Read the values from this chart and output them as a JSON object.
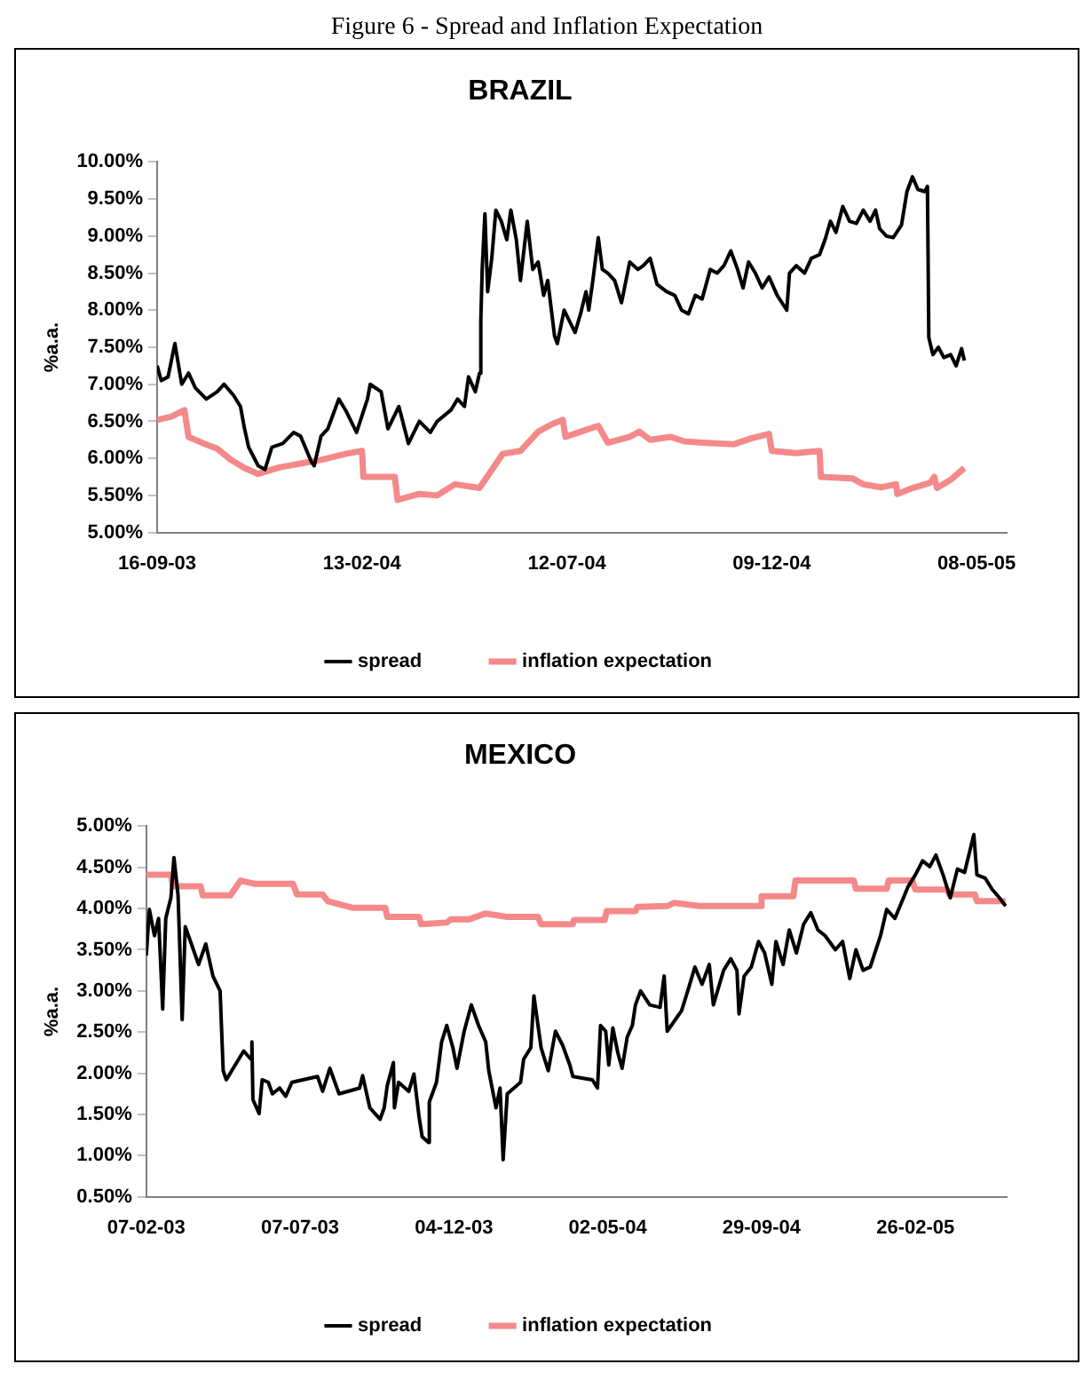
{
  "chart_data": [
    {
      "type": "line",
      "title": "BRAZIL",
      "ylabel": "%a.a.",
      "annotations": [
        "Figure 6 - Spread and Inflation Expectation"
      ],
      "legend": "bottom",
      "grid": false,
      "marker": "none",
      "line_style": "solid",
      "xlim": [
        "2003-09-16",
        "2005-05-30"
      ],
      "xticks": [
        {
          "value": "2003-09-16",
          "label": "16-09-03"
        },
        {
          "value": "2004-02-13",
          "label": "13-02-04"
        },
        {
          "value": "2004-07-12",
          "label": "12-07-04"
        },
        {
          "value": "2004-12-09",
          "label": "09-12-04"
        },
        {
          "value": "2005-05-08",
          "label": "08-05-05"
        }
      ],
      "ylim": [
        5,
        10
      ],
      "yticks": [
        {
          "value": 5,
          "label": "5.00%"
        },
        {
          "value": 5.5,
          "label": "5.50%"
        },
        {
          "value": 6,
          "label": "6.00%"
        },
        {
          "value": 6.5,
          "label": "6.50%"
        },
        {
          "value": 7,
          "label": "7.00%"
        },
        {
          "value": 7.5,
          "label": "7.50%"
        },
        {
          "value": 8,
          "label": "8.00%"
        },
        {
          "value": 8.5,
          "label": "8.50%"
        },
        {
          "value": 9,
          "label": "9.00%"
        },
        {
          "value": 9.5,
          "label": "9.50%"
        },
        {
          "value": 10,
          "label": "10.00%"
        }
      ],
      "series": [
        {
          "name": "spread",
          "color": "#000000",
          "x": [
            "2003-09-16",
            "2003-09-19",
            "2003-09-24",
            "2003-09-29",
            "2003-10-04",
            "2003-10-09",
            "2003-10-14",
            "2003-10-22",
            "2003-10-30",
            "2003-11-04",
            "2003-11-11",
            "2003-11-16",
            "2003-11-19",
            "2003-11-22",
            "2003-11-29",
            "2003-12-04",
            "2003-12-09",
            "2003-12-17",
            "2003-12-25",
            "2003-12-30",
            "2004-01-07",
            "2004-01-09",
            "2004-01-14",
            "2004-01-19",
            "2004-01-27",
            "2004-02-01",
            "2004-02-09",
            "2004-02-17",
            "2004-02-19",
            "2004-02-27",
            "2004-03-03",
            "2004-03-11",
            "2004-03-18",
            "2004-03-26",
            "2004-04-03",
            "2004-04-08",
            "2004-04-18",
            "2004-04-23",
            "2004-04-28",
            "2004-05-01",
            "2004-05-06",
            "2004-05-09",
            "2004-05-10",
            "2004-05-11",
            "2004-05-13",
            "2004-05-15",
            "2004-05-18",
            "2004-05-21",
            "2004-05-25",
            "2004-05-29",
            "2004-06-01",
            "2004-06-05",
            "2004-06-08",
            "2004-06-13",
            "2004-06-17",
            "2004-06-21",
            "2004-06-25",
            "2004-06-28",
            "2004-07-03",
            "2004-07-05",
            "2004-07-10",
            "2004-07-14",
            "2004-07-18",
            "2004-07-22",
            "2004-07-26",
            "2004-07-28",
            "2004-07-31",
            "2004-08-04",
            "2004-08-07",
            "2004-08-11",
            "2004-08-16",
            "2004-08-21",
            "2004-08-27",
            "2004-09-02",
            "2004-09-06",
            "2004-09-11",
            "2004-09-16",
            "2004-09-23",
            "2004-09-29",
            "2004-10-04",
            "2004-10-09",
            "2004-10-14",
            "2004-10-19",
            "2004-10-25",
            "2004-10-30",
            "2004-11-04",
            "2004-11-09",
            "2004-11-14",
            "2004-11-18",
            "2004-11-22",
            "2004-11-27",
            "2004-12-02",
            "2004-12-07",
            "2004-12-13",
            "2004-12-20",
            "2004-12-22",
            "2004-12-27",
            "2005-01-02",
            "2005-01-07",
            "2005-01-13",
            "2005-01-17",
            "2005-01-21",
            "2005-01-25",
            "2005-01-30",
            "2005-02-04",
            "2005-02-09",
            "2005-02-14",
            "2005-02-19",
            "2005-02-23",
            "2005-02-26",
            "2005-03-03",
            "2005-03-08",
            "2005-03-14",
            "2005-03-18",
            "2005-03-22",
            "2005-03-26",
            "2005-03-31",
            "2005-04-02",
            "2005-04-03",
            "2005-04-06",
            "2005-04-10",
            "2005-04-14",
            "2005-04-19",
            "2005-04-23",
            "2005-04-27",
            "2005-04-29"
          ],
          "values": [
            7.25,
            7.05,
            7.1,
            7.55,
            7.0,
            7.15,
            6.95,
            6.8,
            6.9,
            7.0,
            6.85,
            6.7,
            6.4,
            6.15,
            5.9,
            5.85,
            6.15,
            6.2,
            6.35,
            6.3,
            5.95,
            5.9,
            6.3,
            6.4,
            6.8,
            6.65,
            6.35,
            6.8,
            7.0,
            6.9,
            6.4,
            6.7,
            6.2,
            6.5,
            6.35,
            6.5,
            6.65,
            6.8,
            6.7,
            7.1,
            6.9,
            7.15,
            7.87,
            8.55,
            9.3,
            8.25,
            8.7,
            9.35,
            9.2,
            8.95,
            9.35,
            8.95,
            8.4,
            9.2,
            8.55,
            8.65,
            8.2,
            8.4,
            7.65,
            7.55,
            8.0,
            7.85,
            7.7,
            7.95,
            8.25,
            8.0,
            8.4,
            8.98,
            8.55,
            8.5,
            8.4,
            8.1,
            8.65,
            8.55,
            8.6,
            8.7,
            8.35,
            8.25,
            8.2,
            8.0,
            7.95,
            8.2,
            8.15,
            8.55,
            8.5,
            8.6,
            8.8,
            8.55,
            8.3,
            8.65,
            8.5,
            8.3,
            8.45,
            8.2,
            8.0,
            8.5,
            8.6,
            8.5,
            8.7,
            8.75,
            8.95,
            9.2,
            9.05,
            9.4,
            9.2,
            9.17,
            9.35,
            9.2,
            9.35,
            9.1,
            9.0,
            8.98,
            9.15,
            9.6,
            9.8,
            9.63,
            9.6,
            9.67,
            7.63,
            7.4,
            7.5,
            7.36,
            7.4,
            7.25,
            7.48,
            7.32
          ]
        },
        {
          "name": "inflation expectation",
          "color": "#f4898a",
          "x": [
            "2003-09-16",
            "2003-09-26",
            "2003-10-06",
            "2003-10-09",
            "2003-10-19",
            "2003-10-30",
            "2003-11-09",
            "2003-11-19",
            "2003-11-29",
            "2003-12-15",
            "2003-12-30",
            "2004-01-14",
            "2004-02-01",
            "2004-02-13",
            "2004-02-14",
            "2004-03-08",
            "2004-03-10",
            "2004-03-26",
            "2004-04-08",
            "2004-04-21",
            "2004-05-09",
            "2004-05-16",
            "2004-05-26",
            "2004-06-08",
            "2004-06-21",
            "2004-07-01",
            "2004-07-09",
            "2004-07-11",
            "2004-07-22",
            "2004-08-04",
            "2004-08-11",
            "2004-08-27",
            "2004-09-03",
            "2004-09-11",
            "2004-09-26",
            "2004-10-06",
            "2004-10-22",
            "2004-11-11",
            "2004-11-24",
            "2004-12-07",
            "2004-12-09",
            "2004-12-27",
            "2005-01-13",
            "2005-01-14",
            "2005-02-06",
            "2005-02-14",
            "2005-02-27",
            "2005-03-10",
            "2005-03-11",
            "2005-03-22",
            "2005-04-04",
            "2005-04-07",
            "2005-04-09",
            "2005-04-19",
            "2005-04-29"
          ],
          "values": [
            6.52,
            6.56,
            6.65,
            6.29,
            6.21,
            6.13,
            5.98,
            5.87,
            5.79,
            5.88,
            5.93,
            5.98,
            6.06,
            6.1,
            5.75,
            5.75,
            5.44,
            5.52,
            5.5,
            5.65,
            5.6,
            5.79,
            6.06,
            6.1,
            6.36,
            6.46,
            6.52,
            6.29,
            6.36,
            6.44,
            6.21,
            6.29,
            6.36,
            6.25,
            6.29,
            6.23,
            6.21,
            6.19,
            6.27,
            6.33,
            6.1,
            6.07,
            6.1,
            5.75,
            5.73,
            5.65,
            5.61,
            5.65,
            5.52,
            5.6,
            5.67,
            5.75,
            5.6,
            5.71,
            5.87
          ]
        }
      ]
    },
    {
      "type": "line",
      "title": "MEXICO",
      "ylabel": "%a.a.",
      "legend": "bottom",
      "grid": false,
      "marker": "none",
      "line_style": "solid",
      "xlim": [
        "2003-02-07",
        "2005-05-26"
      ],
      "xticks": [
        {
          "value": "2003-02-07",
          "label": "07-02-03"
        },
        {
          "value": "2003-07-07",
          "label": "07-07-03"
        },
        {
          "value": "2003-12-04",
          "label": "04-12-03"
        },
        {
          "value": "2004-05-02",
          "label": "02-05-04"
        },
        {
          "value": "2004-09-29",
          "label": "29-09-04"
        },
        {
          "value": "2005-02-26",
          "label": "26-02-05"
        }
      ],
      "ylim": [
        0.5,
        5
      ],
      "yticks": [
        {
          "value": 0.5,
          "label": "0.50%"
        },
        {
          "value": 1,
          "label": "1.00%"
        },
        {
          "value": 1.5,
          "label": "1.50%"
        },
        {
          "value": 2,
          "label": "2.00%"
        },
        {
          "value": 2.5,
          "label": "2.50%"
        },
        {
          "value": 3,
          "label": "3.00%"
        },
        {
          "value": 3.5,
          "label": "3.50%"
        },
        {
          "value": 4,
          "label": "4.00%"
        },
        {
          "value": 4.5,
          "label": "4.50%"
        },
        {
          "value": 5,
          "label": "5.00%"
        }
      ],
      "series": [
        {
          "name": "spread",
          "color": "#000000",
          "x": [
            "2003-02-07",
            "2003-02-10",
            "2003-02-15",
            "2003-02-19",
            "2003-02-23",
            "2003-02-26",
            "2003-03-03",
            "2003-03-06",
            "2003-03-10",
            "2003-03-14",
            "2003-03-17",
            "2003-03-23",
            "2003-03-30",
            "2003-04-06",
            "2003-04-13",
            "2003-04-20",
            "2003-04-23",
            "2003-04-26",
            "2003-05-13",
            "2003-05-20",
            "2003-05-21",
            "2003-05-22",
            "2003-05-28",
            "2003-05-31",
            "2003-06-06",
            "2003-06-10",
            "2003-06-17",
            "2003-06-23",
            "2003-06-29",
            "2003-07-24",
            "2003-07-29",
            "2003-08-05",
            "2003-08-14",
            "2003-09-03",
            "2003-09-06",
            "2003-09-13",
            "2003-09-23",
            "2003-09-27",
            "2003-09-30",
            "2003-10-06",
            "2003-10-07",
            "2003-10-11",
            "2003-10-21",
            "2003-10-26",
            "2003-10-31",
            "2003-11-03",
            "2003-11-09",
            "2003-11-10",
            "2003-11-17",
            "2003-11-22",
            "2003-11-27",
            "2003-12-03",
            "2003-12-07",
            "2003-12-14",
            "2003-12-21",
            "2003-12-28",
            "2004-01-04",
            "2004-01-07",
            "2004-01-14",
            "2004-01-18",
            "2004-01-21",
            "2004-01-25",
            "2004-02-07",
            "2004-02-10",
            "2004-02-17",
            "2004-02-20",
            "2004-02-27",
            "2004-03-05",
            "2004-03-12",
            "2004-03-19",
            "2004-03-26",
            "2004-03-29",
            "2004-04-17",
            "2004-04-22",
            "2004-04-25",
            "2004-04-30",
            "2004-05-03",
            "2004-05-07",
            "2004-05-12",
            "2004-05-16",
            "2004-05-21",
            "2004-05-26",
            "2004-05-29",
            "2004-06-03",
            "2004-06-12",
            "2004-06-22",
            "2004-06-26",
            "2004-06-29",
            "2004-07-13",
            "2004-07-20",
            "2004-07-26",
            "2004-08-02",
            "2004-08-09",
            "2004-08-13",
            "2004-08-23",
            "2004-08-30",
            "2004-09-05",
            "2004-09-07",
            "2004-09-12",
            "2004-09-19",
            "2004-09-26",
            "2004-10-02",
            "2004-10-09",
            "2004-10-13",
            "2004-10-20",
            "2004-10-26",
            "2004-11-02",
            "2004-11-09",
            "2004-11-16",
            "2004-11-23",
            "2004-11-30",
            "2004-12-10",
            "2004-12-17",
            "2004-12-24",
            "2004-12-30",
            "2005-01-06",
            "2005-01-13",
            "2005-01-23",
            "2005-01-29",
            "2005-02-06",
            "2005-02-13",
            "2005-02-19",
            "2005-02-26",
            "2005-03-05",
            "2005-03-12",
            "2005-03-18",
            "2005-03-25",
            "2005-04-01",
            "2005-04-08",
            "2005-04-15",
            "2005-04-24",
            "2005-04-27",
            "2005-05-05",
            "2005-05-12",
            "2005-05-19",
            "2005-05-25"
          ],
          "values": [
            3.43,
            3.99,
            3.67,
            3.88,
            2.78,
            3.88,
            4.13,
            4.62,
            4.16,
            2.65,
            3.78,
            3.57,
            3.32,
            3.57,
            3.18,
            3.0,
            2.03,
            1.92,
            2.27,
            2.17,
            2.38,
            1.68,
            1.51,
            1.92,
            1.89,
            1.75,
            1.82,
            1.72,
            1.89,
            1.96,
            1.78,
            2.06,
            1.75,
            1.82,
            1.97,
            1.58,
            1.44,
            1.58,
            1.85,
            2.13,
            1.58,
            1.89,
            1.78,
            1.99,
            1.47,
            1.23,
            1.16,
            1.65,
            1.89,
            2.38,
            2.58,
            2.31,
            2.06,
            2.51,
            2.83,
            2.58,
            2.38,
            2.03,
            1.58,
            1.82,
            0.95,
            1.75,
            1.89,
            2.17,
            2.31,
            2.94,
            2.31,
            2.03,
            2.51,
            2.34,
            2.1,
            1.96,
            1.92,
            1.82,
            2.58,
            2.51,
            2.1,
            2.55,
            2.24,
            2.06,
            2.44,
            2.58,
            2.83,
            3.0,
            2.83,
            2.8,
            3.18,
            2.51,
            2.76,
            3.04,
            3.29,
            3.08,
            3.32,
            2.83,
            3.25,
            3.39,
            3.25,
            2.72,
            3.18,
            3.29,
            3.6,
            3.46,
            3.08,
            3.6,
            3.32,
            3.74,
            3.46,
            3.81,
            3.95,
            3.74,
            3.67,
            3.5,
            3.6,
            3.15,
            3.5,
            3.25,
            3.29,
            3.67,
            3.99,
            3.88,
            4.09,
            4.27,
            4.41,
            4.58,
            4.51,
            4.65,
            4.41,
            4.13,
            4.48,
            4.44,
            4.9,
            4.41,
            4.37,
            4.23,
            4.13,
            4.03
          ]
        },
        {
          "name": "inflation expectation",
          "color": "#f4898a",
          "x": [
            "2003-02-07",
            "2003-03-03",
            "2003-03-05",
            "2003-04-01",
            "2003-04-03",
            "2003-04-30",
            "2003-05-10",
            "2003-05-24",
            "2003-06-30",
            "2003-07-04",
            "2003-07-29",
            "2003-08-03",
            "2003-08-27",
            "2003-09-28",
            "2003-09-30",
            "2003-10-31",
            "2003-11-02",
            "2003-11-27",
            "2003-12-01",
            "2003-12-19",
            "2004-01-04",
            "2004-01-24",
            "2004-02-24",
            "2004-02-27",
            "2004-03-29",
            "2004-03-30",
            "2004-04-29",
            "2004-05-01",
            "2004-05-29",
            "2004-05-31",
            "2004-06-29",
            "2004-07-06",
            "2004-07-30",
            "2004-09-28",
            "2004-09-29",
            "2004-10-30",
            "2004-11-01",
            "2004-12-28",
            "2004-12-30",
            "2005-01-29",
            "2005-01-31",
            "2005-02-23",
            "2005-02-26",
            "2005-03-29",
            "2005-03-31",
            "2005-04-25",
            "2005-04-27",
            "2005-05-25"
          ],
          "values": [
            4.41,
            4.41,
            4.27,
            4.27,
            4.16,
            4.16,
            4.34,
            4.3,
            4.3,
            4.17,
            4.17,
            4.09,
            4.01,
            4.01,
            3.9,
            3.9,
            3.81,
            3.83,
            3.87,
            3.87,
            3.94,
            3.9,
            3.9,
            3.81,
            3.81,
            3.86,
            3.86,
            3.97,
            3.97,
            4.02,
            4.03,
            4.07,
            4.03,
            4.03,
            4.15,
            4.15,
            4.34,
            4.34,
            4.24,
            4.24,
            4.34,
            4.34,
            4.23,
            4.23,
            4.17,
            4.17,
            4.09,
            4.09
          ]
        }
      ]
    }
  ]
}
